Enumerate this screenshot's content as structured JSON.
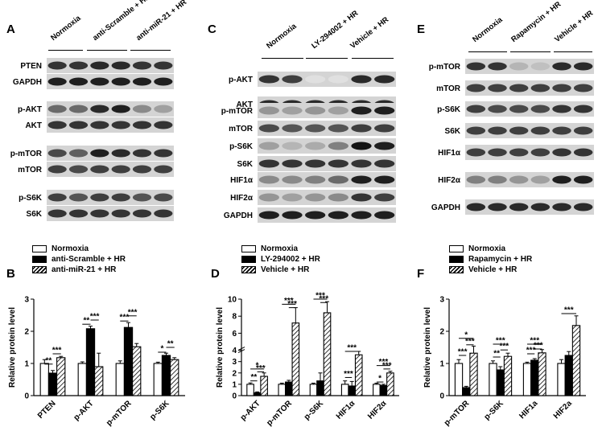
{
  "panels": {
    "A": {
      "letter": "A",
      "groups": [
        "Normoxia",
        "anti-Scramble + HR",
        "anti-miR-21 + HR"
      ],
      "blots": [
        {
          "label": "PTEN",
          "intensity": [
            0.85,
            0.85,
            0.9,
            0.9,
            0.85,
            0.85
          ]
        },
        {
          "label": "GAPDH",
          "intensity": [
            0.95,
            0.95,
            0.95,
            0.95,
            0.95,
            0.95
          ]
        },
        {
          "label": "p-AKT",
          "intensity": [
            0.6,
            0.6,
            0.9,
            0.95,
            0.45,
            0.35
          ]
        },
        {
          "label": "AKT",
          "intensity": [
            0.85,
            0.85,
            0.85,
            0.85,
            0.85,
            0.85
          ]
        },
        {
          "label": "p-mTOR",
          "intensity": [
            0.75,
            0.65,
            0.95,
            0.9,
            0.85,
            0.85
          ]
        },
        {
          "label": "mTOR",
          "intensity": [
            0.8,
            0.75,
            0.8,
            0.8,
            0.8,
            0.8
          ]
        },
        {
          "label": "p-S6K",
          "intensity": [
            0.8,
            0.7,
            0.8,
            0.8,
            0.7,
            0.75
          ]
        },
        {
          "label": "S6K",
          "intensity": [
            0.85,
            0.85,
            0.85,
            0.85,
            0.85,
            0.85
          ]
        }
      ]
    },
    "C": {
      "letter": "C",
      "groups": [
        "Normoxia",
        "LY-294002 + HR",
        "Vehicle + HR"
      ],
      "blots": [
        {
          "label": "p-AKT",
          "intensity": [
            0.85,
            0.8,
            0.05,
            0.05,
            0.9,
            0.9
          ]
        },
        {
          "label": "AKT",
          "intensity": [
            0.9,
            0.9,
            0.9,
            0.9,
            0.9,
            0.9
          ]
        },
        {
          "label": "p-mTOR",
          "intensity": [
            0.4,
            0.35,
            0.4,
            0.35,
            0.95,
            0.95
          ]
        },
        {
          "label": "mTOR",
          "intensity": [
            0.75,
            0.7,
            0.7,
            0.7,
            0.8,
            0.8
          ]
        },
        {
          "label": "p-S6K",
          "intensity": [
            0.35,
            0.25,
            0.3,
            0.5,
            1.0,
            0.95
          ]
        },
        {
          "label": "S6K",
          "intensity": [
            0.85,
            0.85,
            0.85,
            0.85,
            0.85,
            0.85
          ]
        },
        {
          "label": "HIF1α",
          "intensity": [
            0.45,
            0.45,
            0.5,
            0.6,
            0.95,
            0.95
          ]
        },
        {
          "label": "HIF2α",
          "intensity": [
            0.4,
            0.35,
            0.4,
            0.45,
            0.85,
            0.8
          ]
        },
        {
          "label": "GAPDH",
          "intensity": [
            0.95,
            0.95,
            0.95,
            0.95,
            0.95,
            0.95
          ]
        }
      ]
    },
    "E": {
      "letter": "E",
      "groups": [
        "Normoxia",
        "Rapamycin + HR",
        "Vehicle + HR"
      ],
      "blots": [
        {
          "label": "p-mTOR",
          "intensity": [
            0.85,
            0.85,
            0.25,
            0.2,
            0.9,
            0.9
          ]
        },
        {
          "label": "mTOR",
          "intensity": [
            0.8,
            0.8,
            0.8,
            0.8,
            0.8,
            0.8
          ]
        },
        {
          "label": "p-S6K",
          "intensity": [
            0.8,
            0.75,
            0.75,
            0.75,
            0.85,
            0.85
          ]
        },
        {
          "label": "S6K",
          "intensity": [
            0.8,
            0.8,
            0.8,
            0.8,
            0.8,
            0.8
          ]
        },
        {
          "label": "HIF1α",
          "intensity": [
            0.8,
            0.8,
            0.8,
            0.8,
            0.85,
            0.85
          ]
        },
        {
          "label": "HIF2α",
          "intensity": [
            0.5,
            0.5,
            0.4,
            0.35,
            0.95,
            0.95
          ]
        },
        {
          "label": "GAPDH",
          "intensity": [
            0.9,
            0.9,
            0.9,
            0.9,
            0.9,
            0.9
          ]
        }
      ]
    }
  },
  "chart_data": [
    {
      "panel": "B",
      "type": "bar",
      "ylabel": "Relative protein level",
      "ylim": [
        0,
        3
      ],
      "yticks": [
        "0",
        "1",
        "2",
        "3"
      ],
      "categories": [
        "PTEN",
        "p-AKT",
        "p-mTOR",
        "p-S6K"
      ],
      "series": [
        {
          "name": "Normoxia",
          "fill": "white",
          "values": [
            1.0,
            1.0,
            1.0,
            1.0
          ],
          "err": [
            0.12,
            0.05,
            0.08,
            0.04
          ]
        },
        {
          "name": "anti-Scramble + HR",
          "fill": "black",
          "values": [
            0.7,
            2.08,
            2.12,
            1.25
          ],
          "err": [
            0.08,
            0.08,
            0.15,
            0.07
          ]
        },
        {
          "name": "anti-miR-21 + HR",
          "fill": "hatch",
          "values": [
            1.18,
            0.9,
            1.52,
            1.12
          ],
          "err": [
            0.04,
            0.42,
            0.1,
            0.06
          ]
        }
      ],
      "significance": [
        {
          "cat": 0,
          "from": 0,
          "to": 1,
          "text": "**",
          "y": 0.98
        },
        {
          "cat": 0,
          "from": 1,
          "to": 2,
          "text": "***",
          "y": 1.3
        },
        {
          "cat": 1,
          "from": 0,
          "to": 1,
          "text": "**",
          "y": 2.22
        },
        {
          "cat": 1,
          "from": 1,
          "to": 2,
          "text": "***",
          "y": 2.35
        },
        {
          "cat": 2,
          "from": 0,
          "to": 1,
          "text": "***",
          "y": 2.32
        },
        {
          "cat": 2,
          "from": 1,
          "to": 2,
          "text": "***",
          "y": 2.48
        },
        {
          "cat": 3,
          "from": 0,
          "to": 1,
          "text": "*",
          "y": 1.35
        },
        {
          "cat": 3,
          "from": 1,
          "to": 2,
          "text": "**",
          "y": 1.5
        }
      ]
    },
    {
      "panel": "D",
      "type": "bar",
      "ylabel": "Relative protein level",
      "ylim": [
        0,
        10
      ],
      "yticks": [
        "0",
        "1",
        "2",
        "3",
        "4",
        "6",
        "8",
        "10"
      ],
      "categories": [
        "p-AKT",
        "p-mTOR",
        "p-S6K",
        "HIF1α",
        "HIF2α"
      ],
      "series": [
        {
          "name": "Normoxia",
          "fill": "white",
          "values": [
            1.0,
            1.0,
            1.0,
            1.0,
            1.0
          ],
          "err": [
            0.12,
            0.1,
            0.1,
            0.3,
            0.1
          ]
        },
        {
          "name": "LY-294002 + HR",
          "fill": "black",
          "values": [
            0.25,
            1.2,
            1.3,
            0.85,
            0.9
          ],
          "err": [
            0.08,
            0.15,
            0.7,
            0.4,
            0.1
          ]
        },
        {
          "name": "Vehicle + HR",
          "fill": "hatch",
          "values": [
            1.7,
            7.2,
            8.4,
            3.6,
            2.0
          ],
          "err": [
            0.3,
            1.8,
            1.3,
            0.3,
            0.15
          ]
        }
      ],
      "significance": [
        {
          "cat": 0,
          "from": 0,
          "to": 1,
          "text": "**",
          "y": 1.3
        },
        {
          "cat": 0,
          "from": 0,
          "to": 2,
          "text": "*",
          "y": 2.35
        },
        {
          "cat": 0,
          "from": 1,
          "to": 2,
          "text": "***",
          "y": 2.1
        },
        {
          "cat": 1,
          "from": 0,
          "to": 2,
          "text": "***",
          "y": 9.4
        },
        {
          "cat": 1,
          "from": 1,
          "to": 2,
          "text": "***",
          "y": 9.0
        },
        {
          "cat": 2,
          "from": 0,
          "to": 2,
          "text": "***",
          "y": 10.0
        },
        {
          "cat": 2,
          "from": 1,
          "to": 2,
          "text": "***",
          "y": 9.6
        },
        {
          "cat": 3,
          "from": 0,
          "to": 1,
          "text": "***",
          "y": 1.6
        },
        {
          "cat": 3,
          "from": 0,
          "to": 2,
          "text": "***",
          "y": 3.9
        },
        {
          "cat": 4,
          "from": 0,
          "to": 1,
          "text": "*",
          "y": 1.2
        },
        {
          "cat": 4,
          "from": 0,
          "to": 2,
          "text": "***",
          "y": 2.65
        },
        {
          "cat": 4,
          "from": 1,
          "to": 2,
          "text": "***",
          "y": 2.35
        }
      ]
    },
    {
      "panel": "F",
      "type": "bar",
      "ylabel": "Relative protein level",
      "ylim": [
        0,
        3
      ],
      "yticks": [
        "0",
        "1",
        "2",
        "3"
      ],
      "categories": [
        "p-mTOR",
        "p-S6K",
        "HIF1a",
        "HIF2a"
      ],
      "series": [
        {
          "name": "Normoxia",
          "fill": "white",
          "values": [
            1.0,
            1.0,
            1.0,
            1.0
          ],
          "err": [
            0.12,
            0.08,
            0.04,
            0.12
          ]
        },
        {
          "name": "Rapamycin + HR",
          "fill": "black",
          "values": [
            0.25,
            0.8,
            1.1,
            1.25
          ],
          "err": [
            0.04,
            0.1,
            0.05,
            0.12
          ]
        },
        {
          "name": "Vehicle + HR",
          "fill": "hatch",
          "values": [
            1.32,
            1.22,
            1.33,
            2.18
          ],
          "err": [
            0.22,
            0.1,
            0.1,
            0.3
          ]
        }
      ],
      "significance": [
        {
          "cat": 0,
          "from": 0,
          "to": 1,
          "text": "***",
          "y": 1.25
        },
        {
          "cat": 0,
          "from": 0,
          "to": 2,
          "text": "*",
          "y": 1.78
        },
        {
          "cat": 0,
          "from": 1,
          "to": 2,
          "text": "***",
          "y": 1.58
        },
        {
          "cat": 1,
          "from": 0,
          "to": 1,
          "text": "**",
          "y": 1.2
        },
        {
          "cat": 1,
          "from": 0,
          "to": 2,
          "text": "***",
          "y": 1.6
        },
        {
          "cat": 1,
          "from": 1,
          "to": 2,
          "text": "***",
          "y": 1.42
        },
        {
          "cat": 2,
          "from": 0,
          "to": 1,
          "text": "***",
          "y": 1.3
        },
        {
          "cat": 2,
          "from": 0,
          "to": 2,
          "text": "***",
          "y": 1.6
        },
        {
          "cat": 2,
          "from": 1,
          "to": 2,
          "text": "***",
          "y": 1.45
        },
        {
          "cat": 3,
          "from": 0,
          "to": 2,
          "text": "***",
          "y": 2.55
        }
      ]
    }
  ]
}
